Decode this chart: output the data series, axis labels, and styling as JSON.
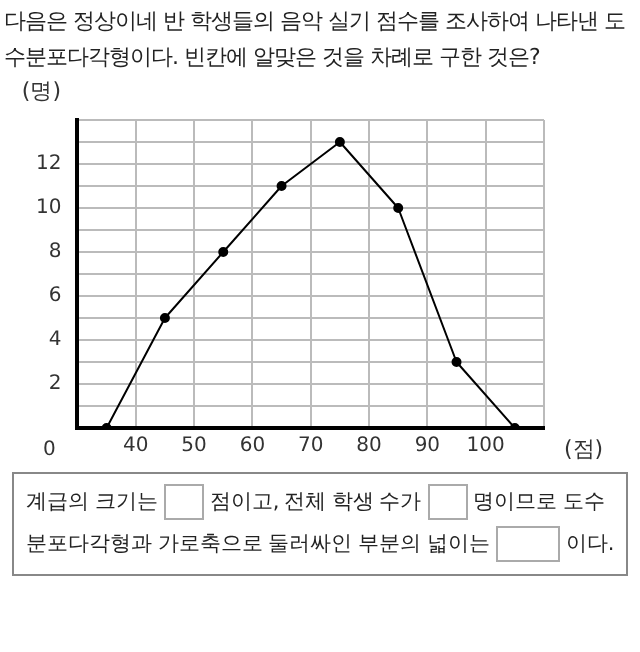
{
  "chart_data": {
    "type": "line",
    "title": "다음은 정상이네 반 학생들의 음악 실기 점수를 조사하여 나타낸 도수분포다각형이다. 빈칸에 알맞은 것을 차례로 구한 것은?",
    "xlabel": "(점)",
    "ylabel": "(명)",
    "x": [
      35,
      45,
      55,
      65,
      75,
      85,
      95,
      105
    ],
    "series": [
      {
        "color": "#000000",
        "values": [
          0,
          5,
          8,
          11,
          13,
          10,
          3,
          0
        ]
      }
    ],
    "xlim": [
      30,
      110
    ],
    "xticks": [
      {
        "value": 30,
        "label": null
      },
      40,
      50,
      60,
      70,
      80,
      90,
      100,
      {
        "value": 110,
        "label": null
      }
    ],
    "ylim": [
      0,
      14
    ],
    "yticks": [
      {
        "value": 0,
        "label": null
      },
      {
        "value": 1,
        "label": null
      },
      2,
      {
        "value": 3,
        "label": null
      },
      4,
      {
        "value": 5,
        "label": null
      },
      6,
      {
        "value": 7,
        "label": null
      },
      8,
      {
        "value": 9,
        "label": null
      },
      10,
      {
        "value": 11,
        "label": null
      },
      12,
      {
        "value": 13,
        "label": null
      },
      {
        "value": 14,
        "label": null
      }
    ],
    "grid": true,
    "legend": false,
    "marker": "circle",
    "line_style": "solid",
    "annotations": [
      "0",
      "계급의 크기는",
      "점이고, 전체 학생 수가",
      "명이므로 도수분포다각형과 가로축으로 둘러싸인 부분의 넓이는",
      "이다."
    ]
  }
}
